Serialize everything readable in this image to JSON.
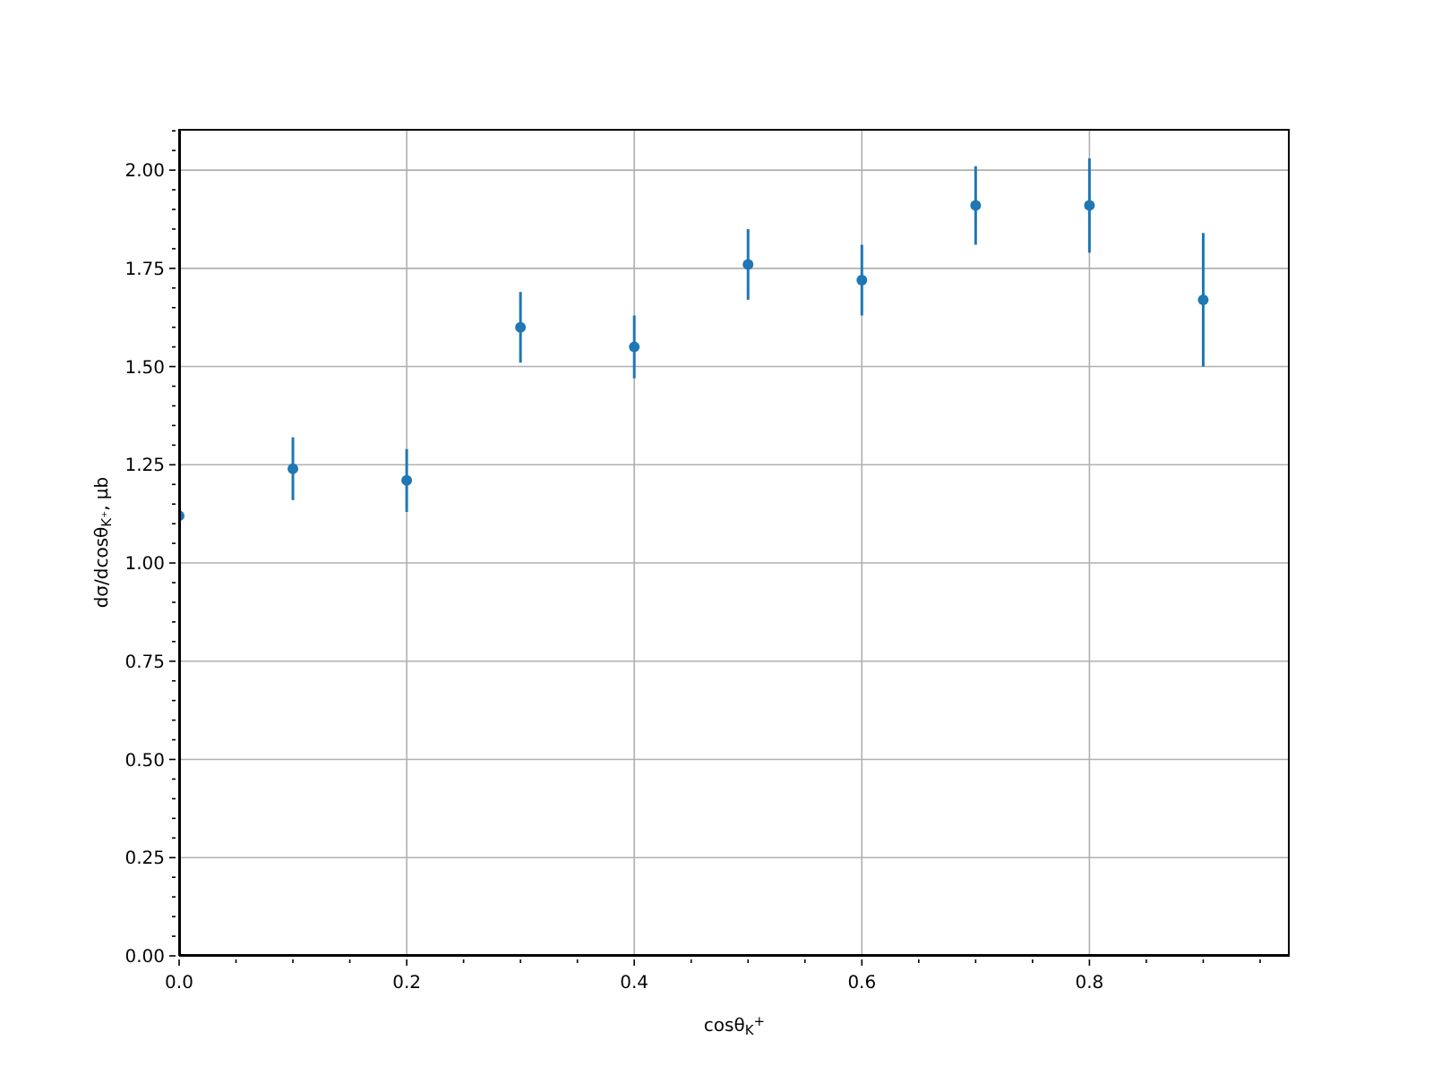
{
  "chart_data": {
    "type": "scatter",
    "xlabel": "cosθ$_{K}$$^{+}$",
    "ylabel": "dσ/dcosθ$_{K⁺}$, μb",
    "x": [
      0,
      0.1,
      0.2,
      0.3,
      0.4,
      0.5,
      0.6,
      0.7,
      0.8,
      0.9
    ],
    "series": [
      {
        "color": "#1f77b4",
        "values": [
          1.12,
          1.24,
          1.21,
          1.6,
          1.55,
          1.76,
          1.72,
          1.91,
          1.91,
          1.67
        ],
        "errors": [
          null,
          0.08,
          0.08,
          0.09,
          0.08,
          0.09,
          0.09,
          0.1,
          0.12,
          0.17
        ]
      }
    ],
    "xlim": [
      0,
      0.976
    ],
    "xticks": [
      {
        "value": 0,
        "label": "0.0"
      },
      {
        "value": 0.05,
        "label": null
      },
      {
        "value": 0.1,
        "label": null
      },
      {
        "value": 0.15,
        "label": null
      },
      {
        "value": 0.2,
        "label": "0.2"
      },
      {
        "value": 0.25,
        "label": null
      },
      {
        "value": 0.3,
        "label": null
      },
      {
        "value": 0.35,
        "label": null
      },
      {
        "value": 0.4,
        "label": "0.4"
      },
      {
        "value": 0.45,
        "label": null
      },
      {
        "value": 0.5,
        "label": null
      },
      {
        "value": 0.55,
        "label": null
      },
      {
        "value": 0.6,
        "label": "0.6"
      },
      {
        "value": 0.65,
        "label": null
      },
      {
        "value": 0.7,
        "label": null
      },
      {
        "value": 0.75,
        "label": null
      },
      {
        "value": 0.8,
        "label": "0.8"
      },
      {
        "value": 0.85,
        "label": null
      },
      {
        "value": 0.9,
        "label": null
      },
      {
        "value": 0.95,
        "label": null
      }
    ],
    "ylim": [
      0,
      2.105
    ],
    "yticks": [
      {
        "value": 0,
        "label": "0.00"
      },
      {
        "value": 0.05,
        "label": null
      },
      {
        "value": 0.1,
        "label": null
      },
      {
        "value": 0.15,
        "label": null
      },
      {
        "value": 0.2,
        "label": null
      },
      {
        "value": 0.25,
        "label": "0.25"
      },
      {
        "value": 0.3,
        "label": null
      },
      {
        "value": 0.35,
        "label": null
      },
      {
        "value": 0.4,
        "label": null
      },
      {
        "value": 0.45,
        "label": null
      },
      {
        "value": 0.5,
        "label": "0.50"
      },
      {
        "value": 0.55,
        "label": null
      },
      {
        "value": 0.6,
        "label": null
      },
      {
        "value": 0.65,
        "label": null
      },
      {
        "value": 0.7,
        "label": null
      },
      {
        "value": 0.75,
        "label": "0.75"
      },
      {
        "value": 0.8,
        "label": null
      },
      {
        "value": 0.85,
        "label": null
      },
      {
        "value": 0.9,
        "label": null
      },
      {
        "value": 0.95,
        "label": null
      },
      {
        "value": 1.0,
        "label": "1.00"
      },
      {
        "value": 1.05,
        "label": null
      },
      {
        "value": 1.1,
        "label": null
      },
      {
        "value": 1.15,
        "label": null
      },
      {
        "value": 1.2,
        "label": null
      },
      {
        "value": 1.25,
        "label": "1.25"
      },
      {
        "value": 1.3,
        "label": null
      },
      {
        "value": 1.35,
        "label": null
      },
      {
        "value": 1.4,
        "label": null
      },
      {
        "value": 1.45,
        "label": null
      },
      {
        "value": 1.5,
        "label": "1.50"
      },
      {
        "value": 1.55,
        "label": null
      },
      {
        "value": 1.6,
        "label": null
      },
      {
        "value": 1.65,
        "label": null
      },
      {
        "value": 1.7,
        "label": null
      },
      {
        "value": 1.75,
        "label": "1.75"
      },
      {
        "value": 1.8,
        "label": null
      },
      {
        "value": 1.85,
        "label": null
      },
      {
        "value": 1.9,
        "label": null
      },
      {
        "value": 1.95,
        "label": null
      },
      {
        "value": 2.0,
        "label": "2.00"
      },
      {
        "value": 2.05,
        "label": null
      },
      {
        "value": 2.1,
        "label": null
      }
    ],
    "grid": true,
    "marker": "circle"
  }
}
